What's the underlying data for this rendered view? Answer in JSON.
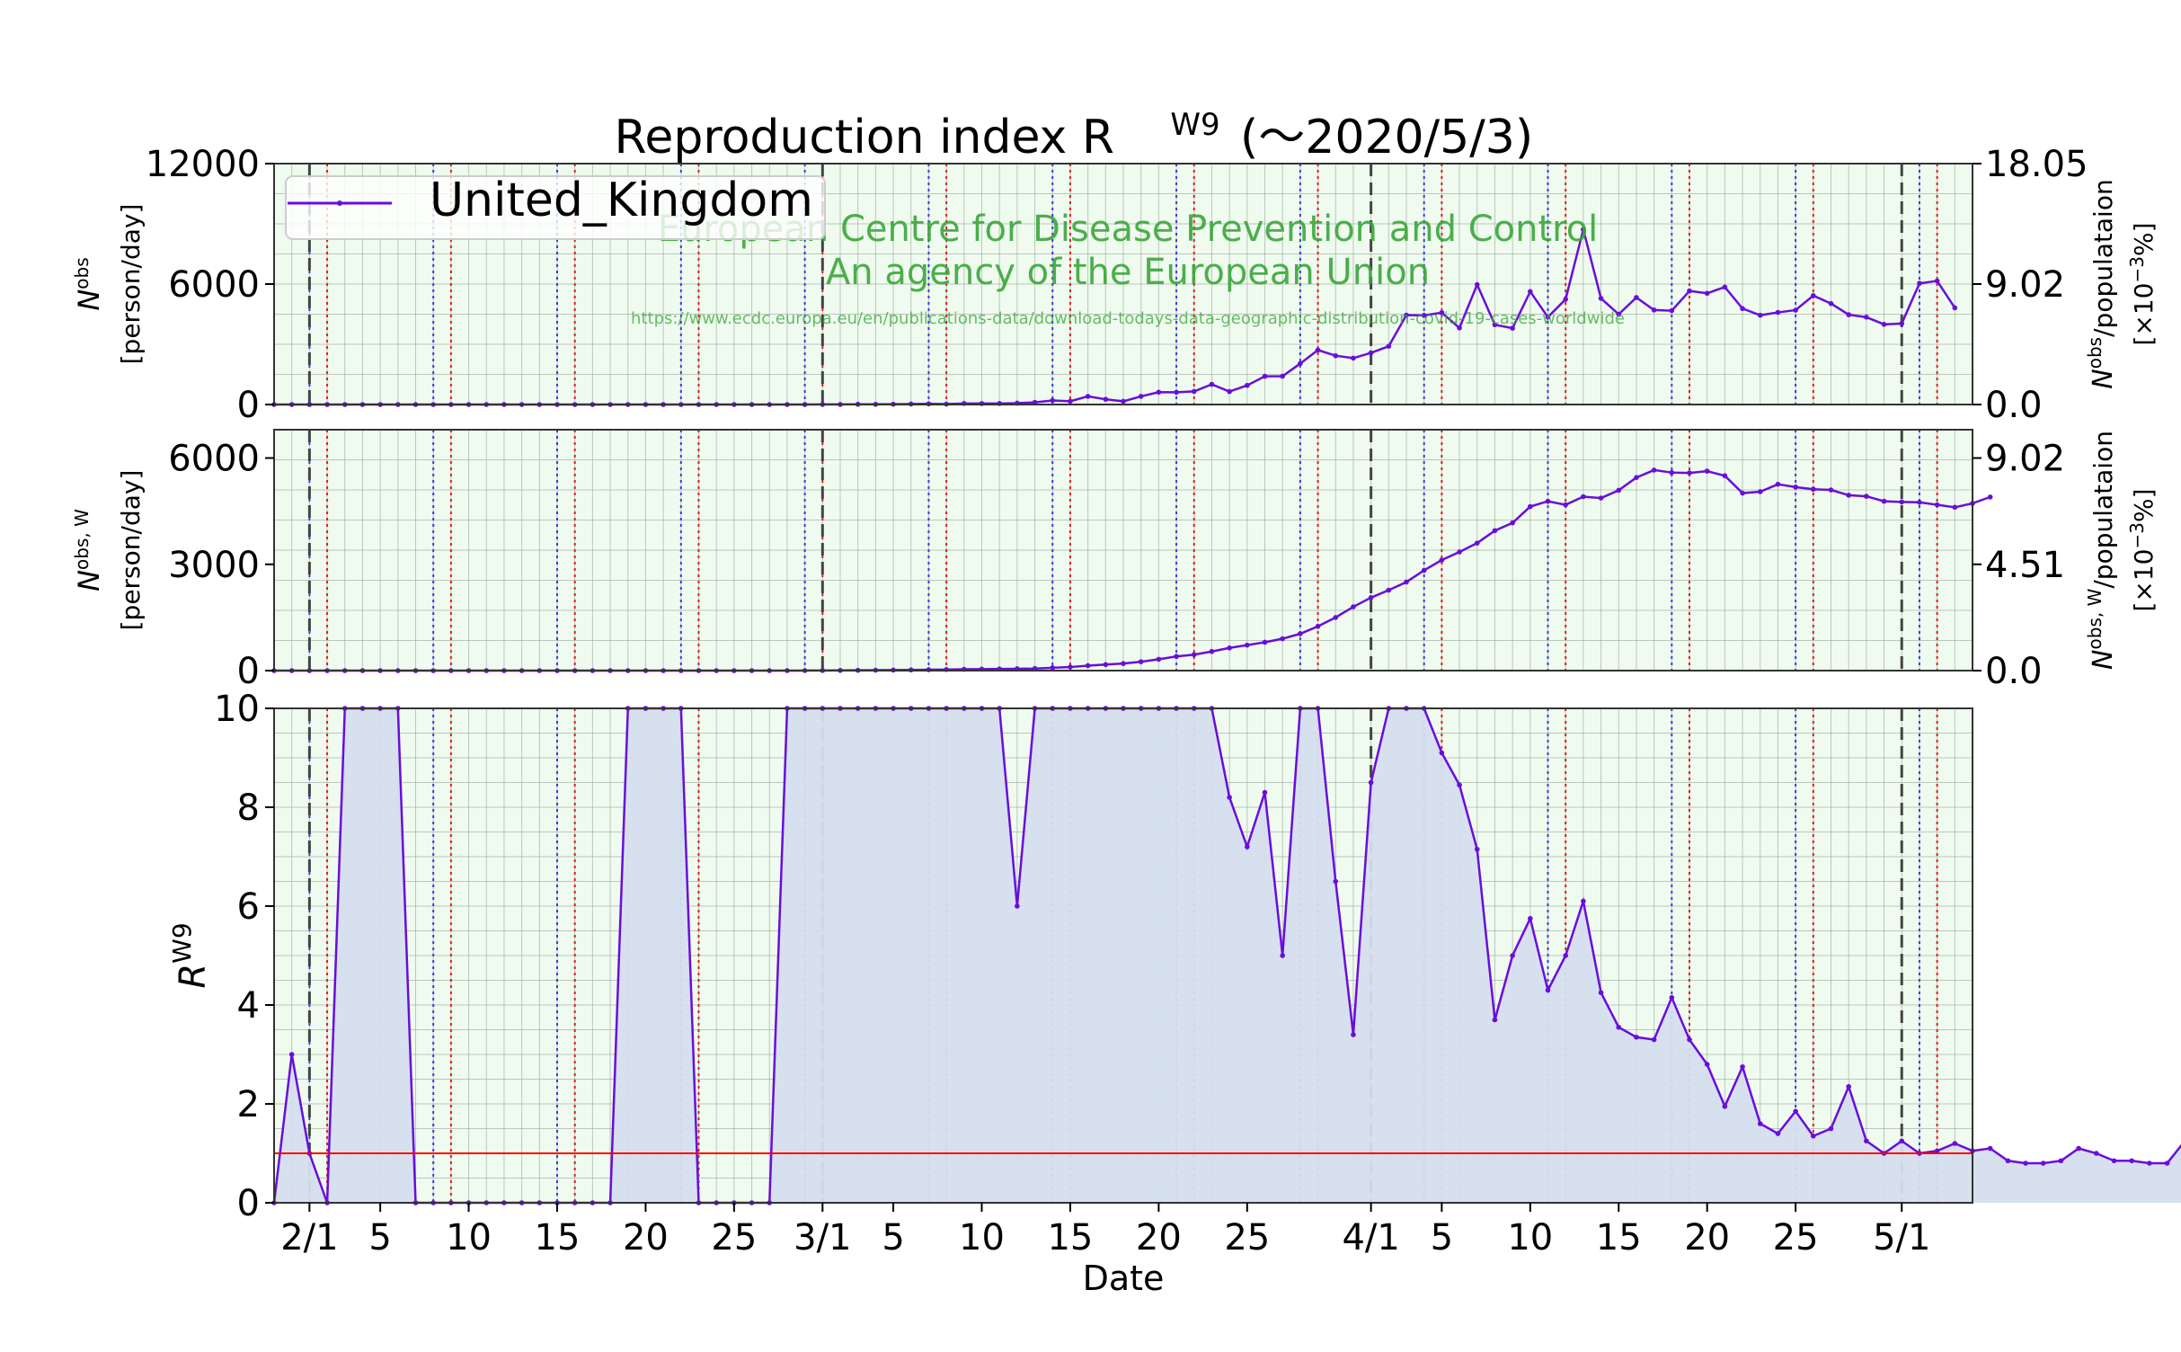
{
  "title": "Reproduction index R",
  "title_sup": "W9",
  "title_suffix": "(～2020/5/3)",
  "legend": {
    "label": "United_Kingdom",
    "placement": "top-left"
  },
  "watermark": {
    "line1": "European Centre for Disease Prevention and Control",
    "line2": "An agency of the European Union",
    "url": "https://www.ecdc.europa.eu/en/publications-data/download-todays-data-geographic-distribution-covid-19-cases-worldwide"
  },
  "colors": {
    "series": "#6a0ddc",
    "area": "#d5deed",
    "background": "#eefbee",
    "reference_line": "#ff0000",
    "weekend_blue": "#3b3bdc",
    "weekend_red": "#dc1e1e",
    "month_line": "#444444",
    "watermark": "#3aa53a"
  },
  "xaxis": {
    "label": "Date",
    "tick_labels": [
      "2/1",
      "5",
      "10",
      "15",
      "20",
      "25",
      "3/1",
      "5",
      "10",
      "15",
      "20",
      "25",
      "4/1",
      "5",
      "10",
      "15",
      "20",
      "25",
      "5/1"
    ],
    "tick_days": [
      0,
      4,
      9,
      14,
      19,
      24,
      29,
      33,
      38,
      43,
      48,
      53,
      60,
      64,
      69,
      74,
      79,
      84,
      90
    ],
    "range_days": [
      -2,
      94
    ]
  },
  "panel1": {
    "ylabel_main": "N",
    "ylabel_sup": "obs",
    "ylabel_unit": "[person/day]",
    "yticks": [
      "0",
      "6000",
      "12000"
    ],
    "ylim": [
      0,
      12000
    ],
    "right_ticks": [
      "0.0",
      "9.02",
      "18.05"
    ],
    "right_label_main": "N",
    "right_label_sup": "obs",
    "right_label_rest": "/populataion",
    "right_label_unit": "[×10",
    "right_label_unit_sup": "−3",
    "right_label_unit_end": "%]"
  },
  "panel2": {
    "ylabel_main": "N",
    "ylabel_sup": "obs, W",
    "ylabel_unit": "[person/day]",
    "yticks": [
      "0",
      "3000",
      "6000"
    ],
    "ylim": [
      0,
      6800
    ],
    "right_ticks": [
      "0.0",
      "4.51",
      "9.02"
    ],
    "right_label_main": "N",
    "right_label_sup": "obs, W",
    "right_label_rest": "/populataion",
    "right_label_unit": "[×10",
    "right_label_unit_sup": "−3",
    "right_label_unit_end": "%]"
  },
  "panel3": {
    "ylabel_main": "R",
    "ylabel_sup": "W9",
    "yticks": [
      "0",
      "2",
      "4",
      "6",
      "8",
      "10"
    ],
    "ylim": [
      0,
      10
    ],
    "reference_value": 1
  },
  "chart_data": [
    {
      "type": "line",
      "panel": "daily new cases",
      "series": [
        {
          "name": "United_Kingdom",
          "x_start": "2020-01-30",
          "values": [
            0,
            0,
            0,
            0,
            0,
            0,
            0,
            0,
            0,
            0,
            0,
            0,
            0,
            0,
            0,
            0,
            0,
            0,
            0,
            0,
            0,
            0,
            0,
            0,
            0,
            0,
            0,
            0,
            0,
            0,
            1,
            3,
            3,
            13,
            11,
            14,
            25,
            32,
            20,
            53,
            49,
            51,
            68,
            108,
            202,
            162,
            406,
            260,
            160,
            406,
            615,
            611,
            654,
            1004,
            645,
            953,
            1406,
            1412,
            2040,
            2714,
            2431,
            2311,
            2573,
            2902,
            4453,
            4439,
            4577,
            3816,
            5975,
            3974,
            3801,
            5627,
            4352,
            5242,
            8719,
            5287,
            4495,
            5330,
            4708,
            4676,
            5657,
            5541,
            5851,
            4780,
            4448,
            4587,
            4702,
            5426,
            5030,
            4473,
            4351,
            3993,
            4035,
            6035,
            6155,
            4817
          ]
        }
      ]
    },
    {
      "type": "line",
      "panel": "7-day average",
      "series": [
        {
          "name": "United_Kingdom",
          "x_start": "2020-01-30",
          "values": [
            0,
            0,
            0,
            0,
            0,
            0,
            0,
            0,
            0,
            0,
            0,
            0,
            0,
            0,
            0,
            0,
            0,
            0,
            0,
            0,
            0,
            0,
            0,
            0,
            0,
            0,
            0,
            0,
            0,
            0,
            2,
            4,
            6,
            9,
            12,
            15,
            20,
            25,
            30,
            37,
            42,
            46,
            52,
            58,
            80,
            100,
            140,
            170,
            200,
            250,
            320,
            400,
            450,
            540,
            640,
            720,
            800,
            900,
            1040,
            1250,
            1500,
            1800,
            2060,
            2270,
            2500,
            2830,
            3120,
            3350,
            3600,
            3950,
            4170,
            4630,
            4780,
            4680,
            4910,
            4870,
            5090,
            5450,
            5660,
            5590,
            5580,
            5630,
            5500,
            5010,
            5050,
            5260,
            5180,
            5120,
            5100,
            4950,
            4920,
            4780,
            4760,
            4750,
            4680,
            4610,
            4720,
            4900
          ]
        }
      ]
    },
    {
      "type": "area",
      "panel": "reproduction index",
      "series": [
        {
          "name": "United_Kingdom",
          "x_start": "2020-01-30",
          "values": [
            0,
            3,
            1,
            0,
            10,
            10,
            10,
            10,
            0,
            0,
            0,
            0,
            0,
            0,
            0,
            0,
            0,
            0,
            0,
            0,
            10,
            10,
            10,
            10,
            0,
            0,
            0,
            0,
            0,
            10,
            10,
            10,
            10,
            10,
            10,
            10,
            10,
            10,
            10,
            10,
            10,
            10,
            6,
            10,
            10,
            10,
            10,
            10,
            10,
            10,
            10,
            10,
            10,
            10,
            8.2,
            7.2,
            8.3,
            5,
            10,
            10,
            6.5,
            3.4,
            8.5,
            10,
            10,
            10,
            9.1,
            8.45,
            7.15,
            3.7,
            5,
            5.75,
            4.3,
            5,
            6.1,
            4.25,
            3.55,
            3.35,
            3.3,
            4.15,
            3.3,
            2.8,
            1.95,
            2.75,
            1.6,
            1.4,
            1.85,
            1.35,
            1.5,
            2.35,
            1.25,
            1,
            1.25,
            1,
            1.05,
            1.2,
            1.05,
            1.1,
            0.85,
            0.8,
            0.8,
            0.85,
            1.1,
            1,
            0.85,
            0.85,
            0.8,
            0.8,
            1.25,
            1.3,
            1
          ]
        }
      ],
      "reference_line": 1
    }
  ]
}
